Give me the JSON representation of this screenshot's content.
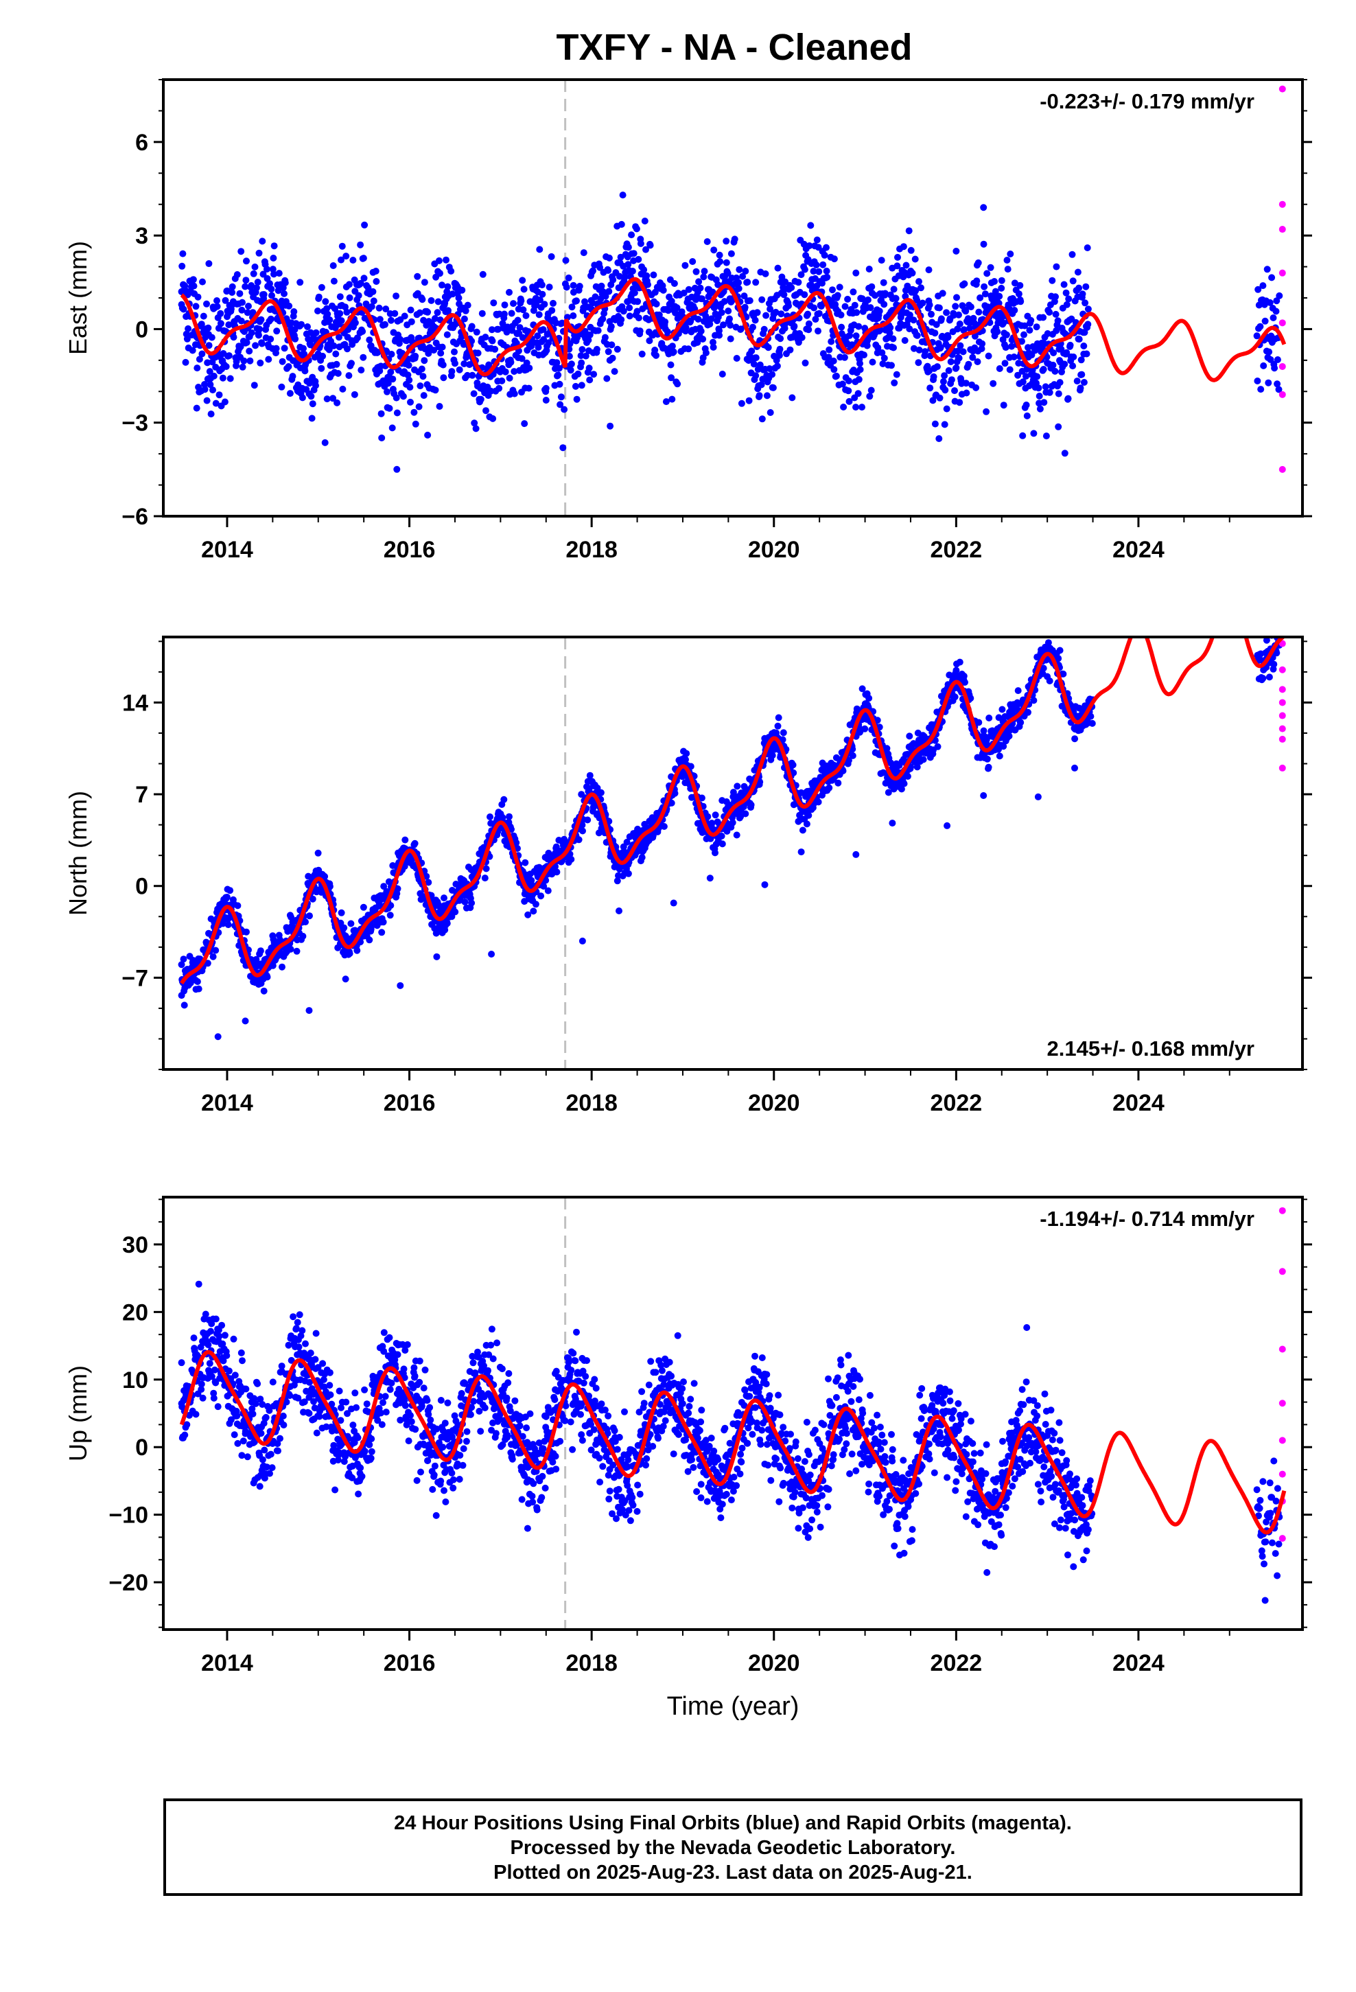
{
  "title": "TXFY  - NA - Cleaned",
  "footer": {
    "line1": "24 Hour Positions Using Final Orbits (blue) and Rapid Orbits (magenta).",
    "line2": "Processed by the Nevada Geodetic Laboratory.",
    "line3": "Plotted on 2025-Aug-23. Last data on 2025-Aug-21."
  },
  "colors": {
    "final": "#0000ff",
    "rapid": "#ff00ff",
    "model": "#ff0000",
    "event": "#c0c0c0"
  },
  "chart_data": [
    {
      "type": "scatter",
      "ylabel": "East (mm)",
      "xlabel": "",
      "xlim": [
        2013.3,
        2025.8
      ],
      "ylim": [
        -6,
        8
      ],
      "yticks": [
        6,
        3,
        0,
        -3,
        -6
      ],
      "ytick_labels": [
        "6",
        "3",
        "0",
        "−3",
        "−6"
      ],
      "xticks": [
        2014,
        2016,
        2018,
        2020,
        2022,
        2024
      ],
      "xtick_labels": [
        "2014",
        "2016",
        "2018",
        "2020",
        "2022",
        "2024"
      ],
      "velocity": "-0.223+/- 0.179 mm/yr",
      "velocity_pos": "top-right",
      "event_line_x": 2017.71,
      "data_end": 2023.45,
      "rapid_start": 2025.3,
      "seasonal": {
        "offset": 0.2,
        "trend": -0.223,
        "amp": 0.75,
        "phase": 0.15,
        "amp2": 0.3,
        "phase2": 0.4,
        "noise": 1.3,
        "jumps": [
          [
            2017.71,
            1.6
          ]
        ]
      },
      "final_scatter": [
        [
          2013.5,
          1.2
        ],
        [
          2013.8,
          2.1
        ],
        [
          2014.0,
          0.4
        ],
        [
          2014.3,
          -1.8
        ],
        [
          2014.6,
          0.9
        ],
        [
          2014.8,
          1.5
        ],
        [
          2015.1,
          -0.6
        ],
        [
          2015.4,
          -2.1
        ],
        [
          2015.6,
          1.2
        ],
        [
          2015.9,
          0.3
        ],
        [
          2016.2,
          -3.4
        ],
        [
          2016.5,
          -1.1
        ],
        [
          2016.8,
          0.5
        ],
        [
          2017.2,
          -0.7
        ],
        [
          2017.5,
          -1.9
        ],
        [
          2017.8,
          1.4
        ],
        [
          2018.2,
          -1.0
        ],
        [
          2018.6,
          0.8
        ],
        [
          2019.0,
          0.4
        ],
        [
          2019.4,
          -0.2
        ],
        [
          2019.8,
          1.5
        ],
        [
          2020.2,
          -2.2
        ],
        [
          2020.6,
          -0.9
        ],
        [
          2020.9,
          1.8
        ],
        [
          2021.3,
          0.6
        ],
        [
          2021.7,
          1.9
        ],
        [
          2022.0,
          2.5
        ],
        [
          2022.3,
          3.9
        ],
        [
          2022.7,
          1.4
        ],
        [
          2023.1,
          2.0
        ],
        [
          2023.4,
          -0.8
        ]
      ],
      "rapid_scatter": [
        [
          2025.58,
          7.7
        ],
        [
          2025.58,
          4.0
        ],
        [
          2025.58,
          3.2
        ],
        [
          2025.58,
          1.8
        ],
        [
          2025.58,
          0.2
        ],
        [
          2025.58,
          -1.2
        ],
        [
          2025.58,
          -2.1
        ],
        [
          2025.58,
          -4.5
        ]
      ]
    },
    {
      "type": "scatter",
      "ylabel": "North (mm)",
      "xlabel": "",
      "xlim": [
        2013.3,
        2025.8
      ],
      "ylim": [
        -14,
        19
      ],
      "yticks": [
        14,
        7,
        0,
        -7
      ],
      "ytick_labels": [
        "14",
        "7",
        "0",
        "−7"
      ],
      "xticks": [
        2014,
        2016,
        2018,
        2020,
        2022,
        2024
      ],
      "xtick_labels": [
        "2014",
        "2016",
        "2018",
        "2020",
        "2022",
        "2024"
      ],
      "velocity": "2.145+/- 0.168 mm/yr",
      "velocity_pos": "bottom-right",
      "event_line_x": 2017.71,
      "data_end": 2023.5,
      "rapid_start": 2025.3,
      "seasonal": {
        "offset": -6.0,
        "trend": 2.145,
        "amp": 2.5,
        "phase": 0.7,
        "amp2": 1.0,
        "phase2": 0.9,
        "noise": 0.9,
        "jumps": []
      },
      "final_scatter": [
        [
          2013.5,
          -6.0
        ],
        [
          2013.9,
          -11.5
        ],
        [
          2014.2,
          -10.3
        ],
        [
          2014.5,
          -3.8
        ],
        [
          2014.9,
          -9.5
        ],
        [
          2015.3,
          -7.1
        ],
        [
          2015.6,
          -1.8
        ],
        [
          2015.9,
          -7.6
        ],
        [
          2016.3,
          -5.4
        ],
        [
          2016.6,
          0.4
        ],
        [
          2016.9,
          -5.2
        ],
        [
          2017.3,
          -2.2
        ],
        [
          2017.6,
          2.5
        ],
        [
          2017.9,
          -4.2
        ],
        [
          2018.3,
          -1.9
        ],
        [
          2018.6,
          3.6
        ],
        [
          2018.9,
          -1.3
        ],
        [
          2019.3,
          0.6
        ],
        [
          2019.6,
          5.9
        ],
        [
          2019.9,
          0.1
        ],
        [
          2020.3,
          2.6
        ],
        [
          2020.6,
          8.0
        ],
        [
          2020.9,
          2.4
        ],
        [
          2021.3,
          4.8
        ],
        [
          2021.6,
          10.1
        ],
        [
          2021.9,
          4.6
        ],
        [
          2022.3,
          6.9
        ],
        [
          2022.6,
          12.1
        ],
        [
          2022.9,
          6.8
        ],
        [
          2023.3,
          9.0
        ]
      ],
      "rapid_scatter": [
        [
          2025.58,
          18.5
        ],
        [
          2025.58,
          16.5
        ],
        [
          2025.58,
          15.0
        ],
        [
          2025.58,
          14.0
        ],
        [
          2025.58,
          13.0
        ],
        [
          2025.58,
          12.0
        ],
        [
          2025.58,
          11.2
        ],
        [
          2025.58,
          9.0
        ]
      ]
    },
    {
      "type": "scatter",
      "ylabel": "Up (mm)",
      "xlabel": "Time (year)",
      "xlim": [
        2013.3,
        2025.8
      ],
      "ylim": [
        -27,
        37
      ],
      "yticks": [
        30,
        20,
        10,
        0,
        -10,
        -20
      ],
      "ytick_labels": [
        "30",
        "20",
        "10",
        "0",
        "−10",
        "−20"
      ],
      "xticks": [
        2014,
        2016,
        2018,
        2020,
        2022,
        2024
      ],
      "xtick_labels": [
        "2014",
        "2016",
        "2018",
        "2020",
        "2022",
        "2024"
      ],
      "velocity": "-1.194+/- 0.714 mm/yr",
      "velocity_pos": "top-right",
      "event_line_x": 2017.71,
      "data_end": 2023.5,
      "rapid_start": 2025.3,
      "seasonal": {
        "offset": 8.0,
        "trend": -1.194,
        "amp": 6.0,
        "phase": 0.6,
        "amp2": 1.2,
        "phase2": 0.1,
        "noise": 4.5,
        "jumps": []
      },
      "final_scatter": [
        [
          2013.5,
          12.5
        ],
        [
          2013.9,
          6.0
        ],
        [
          2014.2,
          2.0
        ],
        [
          2014.6,
          12.0
        ],
        [
          2014.9,
          5.0
        ],
        [
          2015.2,
          -1.0
        ],
        [
          2015.6,
          10.5
        ],
        [
          2015.9,
          4.0
        ],
        [
          2016.2,
          -2.0
        ],
        [
          2016.6,
          9.5
        ],
        [
          2016.9,
          2.5
        ],
        [
          2017.3,
          -3.0
        ],
        [
          2017.6,
          8.5
        ],
        [
          2017.9,
          1.0
        ],
        [
          2018.2,
          -6.5
        ],
        [
          2018.6,
          4.5
        ],
        [
          2018.9,
          -1.0
        ],
        [
          2019.2,
          -7.5
        ],
        [
          2019.6,
          3.5
        ],
        [
          2019.9,
          -2.5
        ],
        [
          2020.2,
          -9.0
        ],
        [
          2020.6,
          2.0
        ],
        [
          2020.9,
          -3.5
        ],
        [
          2021.2,
          -10.0
        ],
        [
          2021.6,
          1.0
        ],
        [
          2021.9,
          -4.5
        ],
        [
          2022.2,
          -11.0
        ],
        [
          2022.6,
          0.5
        ],
        [
          2022.9,
          -5.5
        ],
        [
          2023.2,
          -12.0
        ]
      ],
      "rapid_scatter": [
        [
          2025.58,
          35.0
        ],
        [
          2025.58,
          26.0
        ],
        [
          2025.58,
          14.5
        ],
        [
          2025.58,
          6.5
        ],
        [
          2025.58,
          1.0
        ],
        [
          2025.58,
          -4.0
        ],
        [
          2025.58,
          -8.0
        ],
        [
          2025.58,
          -13.5
        ]
      ]
    }
  ]
}
